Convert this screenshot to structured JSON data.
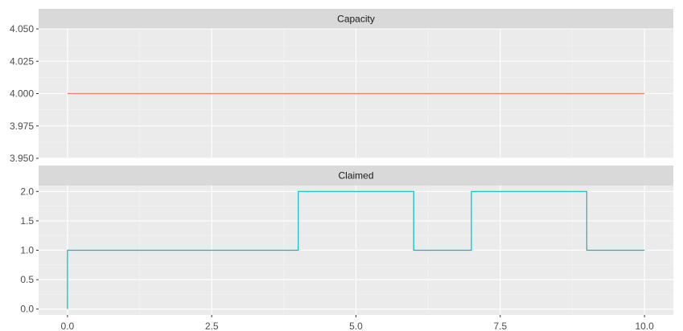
{
  "chart_data": {
    "type": "line",
    "step": true,
    "x_ticks": [
      "0.0",
      "2.5",
      "5.0",
      "7.5",
      "10.0"
    ],
    "x_tick_values": [
      0,
      2.5,
      5,
      7.5,
      10
    ],
    "xlim": [
      -0.5,
      10.5
    ],
    "xlabel": "",
    "ylabel": "",
    "grid": true,
    "panels": [
      {
        "strip": "Capacity",
        "color": "#F8766D",
        "ylim": [
          3.95,
          4.05
        ],
        "y_ticks": [
          "3.950",
          "3.975",
          "4.000",
          "4.025",
          "4.050"
        ],
        "y_tick_values": [
          3.95,
          3.975,
          4.0,
          4.025,
          4.05
        ],
        "x": [
          0,
          10
        ],
        "y": [
          4.0,
          4.0
        ]
      },
      {
        "strip": "Claimed",
        "color": "#00BFC4",
        "ylim": [
          -0.1,
          2.1
        ],
        "y_ticks": [
          "0.0",
          "0.5",
          "1.0",
          "1.5",
          "2.0"
        ],
        "y_tick_values": [
          0,
          0.5,
          1.0,
          1.5,
          2.0
        ],
        "x": [
          0,
          0,
          4,
          6,
          7,
          9,
          10
        ],
        "y": [
          0,
          1,
          2,
          1,
          2,
          1,
          1
        ]
      }
    ]
  }
}
